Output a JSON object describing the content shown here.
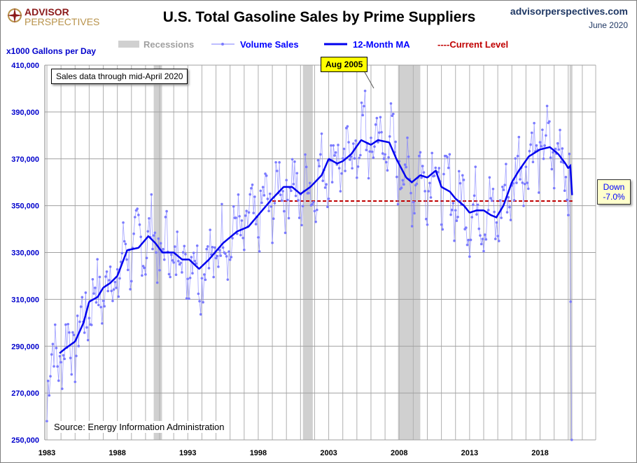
{
  "header": {
    "title": "U.S. Total Gasoline Sales by Prime Suppliers",
    "site": "advisorperspectives.com",
    "date": "June 2020",
    "logo_top": "ADVISOR",
    "logo_bottom": "PERSPECTIVES"
  },
  "colors": {
    "volume": "#7b7bff",
    "ma": "#0000ee",
    "current": "#c00000",
    "recession": "#d0d0d0"
  },
  "chart_data": {
    "type": "line",
    "title": "U.S. Total Gasoline Sales by Prime Suppliers",
    "ylabel": "x1000  Gallons per Day",
    "xlabel": "",
    "ylim": [
      250000,
      410000
    ],
    "xlim": [
      1982.85,
      2021.95
    ],
    "yticks": [
      "250,000",
      "270,000",
      "290,000",
      "310,000",
      "330,000",
      "350,000",
      "370,000",
      "390,000",
      "410,000"
    ],
    "ytick_values": [
      250000,
      270000,
      290000,
      310000,
      330000,
      350000,
      370000,
      390000,
      410000
    ],
    "xticks": [
      "1983",
      "1988",
      "1993",
      "1998",
      "2003",
      "2008",
      "2013",
      "2018"
    ],
    "xtick_values": [
      1983,
      1988,
      1993,
      1998,
      2003,
      2008,
      2013,
      2018
    ],
    "legend": {
      "placement": "top",
      "entries": [
        "Recessions",
        "Volume Sales",
        "12-Month MA",
        "----Current Level"
      ]
    },
    "recessions": [
      [
        1990.58,
        1991.17
      ],
      [
        2001.17,
        2001.87
      ],
      [
        2007.92,
        2009.5
      ],
      [
        2020.1,
        2020.3
      ]
    ],
    "current_level": 352000,
    "current_level_start": 1999.0,
    "ma_series": {
      "name": "12-Month MA",
      "x": [
        1983.9,
        1984.3,
        1985,
        1985.6,
        1986,
        1986.6,
        1987,
        1987.5,
        1988,
        1988.7,
        1989.5,
        1990.2,
        1990.7,
        1991.2,
        1992,
        1992.6,
        1993.1,
        1993.8,
        1994.5,
        1995.5,
        1996.5,
        1997.3,
        1998,
        1999,
        1999.8,
        2000.4,
        2001,
        2001.7,
        2002.5,
        2003,
        2003.6,
        2004,
        2004.6,
        2005.3,
        2006,
        2006.5,
        2007.3,
        2007.8,
        2008.5,
        2008.9,
        2009.5,
        2010,
        2010.6,
        2011,
        2011.6,
        2012,
        2012.6,
        2013,
        2013.5,
        2014,
        2014.5,
        2014.9,
        2015.4,
        2016,
        2016.5,
        2017.2,
        2018,
        2018.7,
        2019.3,
        2019.8,
        2020.0,
        2020.15,
        2020.3
      ],
      "values": [
        287000,
        289000,
        292000,
        300000,
        309000,
        311000,
        315000,
        317000,
        320000,
        331000,
        332000,
        337000,
        334000,
        330000,
        330000,
        327000,
        327000,
        323000,
        327000,
        334000,
        339000,
        341000,
        346000,
        353000,
        358000,
        358000,
        355000,
        358000,
        363000,
        370000,
        368000,
        369000,
        372000,
        378000,
        376000,
        378000,
        377000,
        370000,
        362000,
        360000,
        363000,
        362000,
        365000,
        358000,
        356000,
        353000,
        350000,
        347000,
        348000,
        348000,
        346000,
        345000,
        350000,
        360000,
        365000,
        371000,
        374000,
        375000,
        372000,
        368000,
        366000,
        367000,
        352000
      ]
    },
    "volume_series": {
      "name": "Volume Sales",
      "frequency": "monthly",
      "start": "Jan 1983",
      "end": "Apr 2020",
      "seasonal_amplitude": 12000,
      "notable_points": [
        {
          "label": "Jan 1983",
          "value": 258000
        },
        {
          "label": "Aug 2005",
          "value": 399000
        },
        {
          "label": "Mar 2020",
          "value": 309000
        },
        {
          "label": "Apr 2020",
          "value": 250000
        }
      ]
    },
    "annotations": {
      "through": "Sales data through mid-April 2020",
      "peak": "Aug 2005",
      "down_label": "Down",
      "down_value": "-7.0%",
      "source": "Source: Energy Information Administration"
    }
  }
}
